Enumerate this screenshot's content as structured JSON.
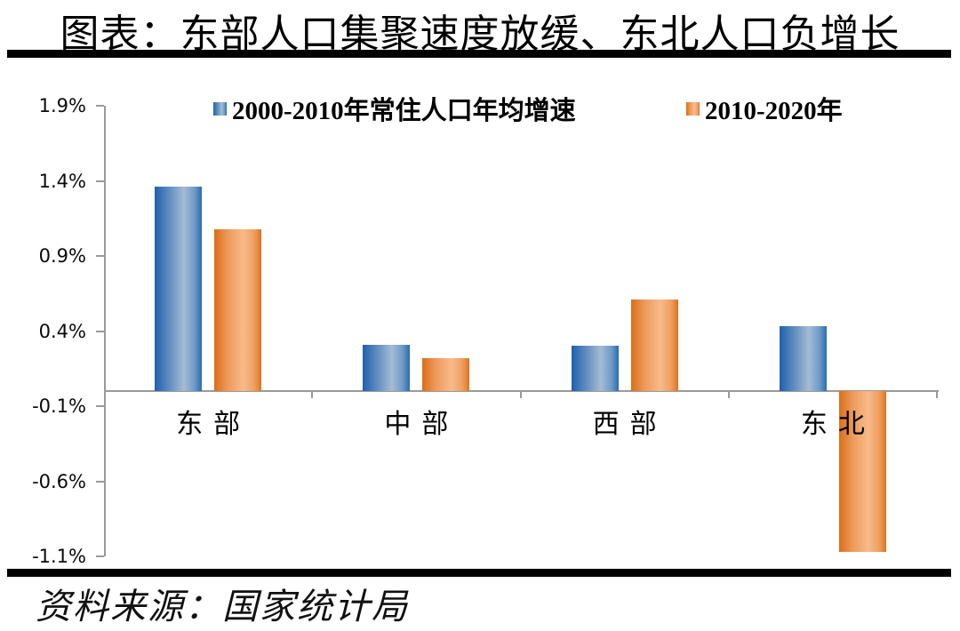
{
  "title": "图表：东部人口集聚速度放缓、东北人口负增长",
  "source": "资料来源：国家统计局",
  "colors": {
    "series_blue": "#2E6DB4",
    "series_orange": "#E0711E",
    "axis_gray": "#9a9a9a",
    "rule_black": "#000000"
  },
  "chart_data": {
    "type": "bar",
    "title": "东部人口集聚速度放缓、东北人口负增长",
    "categories": [
      "东部",
      "中部",
      "西部",
      "东北"
    ],
    "series": [
      {
        "name": "2000-2010年常住人口年均增速",
        "color": "#2E6DB4",
        "values": [
          1.36,
          0.31,
          0.3,
          0.43
        ]
      },
      {
        "name": "2010-2020年",
        "color": "#E0711E",
        "values": [
          1.08,
          0.22,
          0.61,
          -1.07
        ]
      }
    ],
    "unit": "%",
    "xlabel": "",
    "ylabel": "",
    "ylim": [
      -1.1,
      1.9
    ],
    "yticks": [
      "1.9%",
      "1.4%",
      "0.9%",
      "0.4%",
      "-0.1%",
      "-0.6%",
      "-1.1%"
    ],
    "ytick_values": [
      1.9,
      1.4,
      0.9,
      0.4,
      -0.1,
      -0.6,
      -1.1
    ],
    "grid": false,
    "legend_position": "top"
  }
}
